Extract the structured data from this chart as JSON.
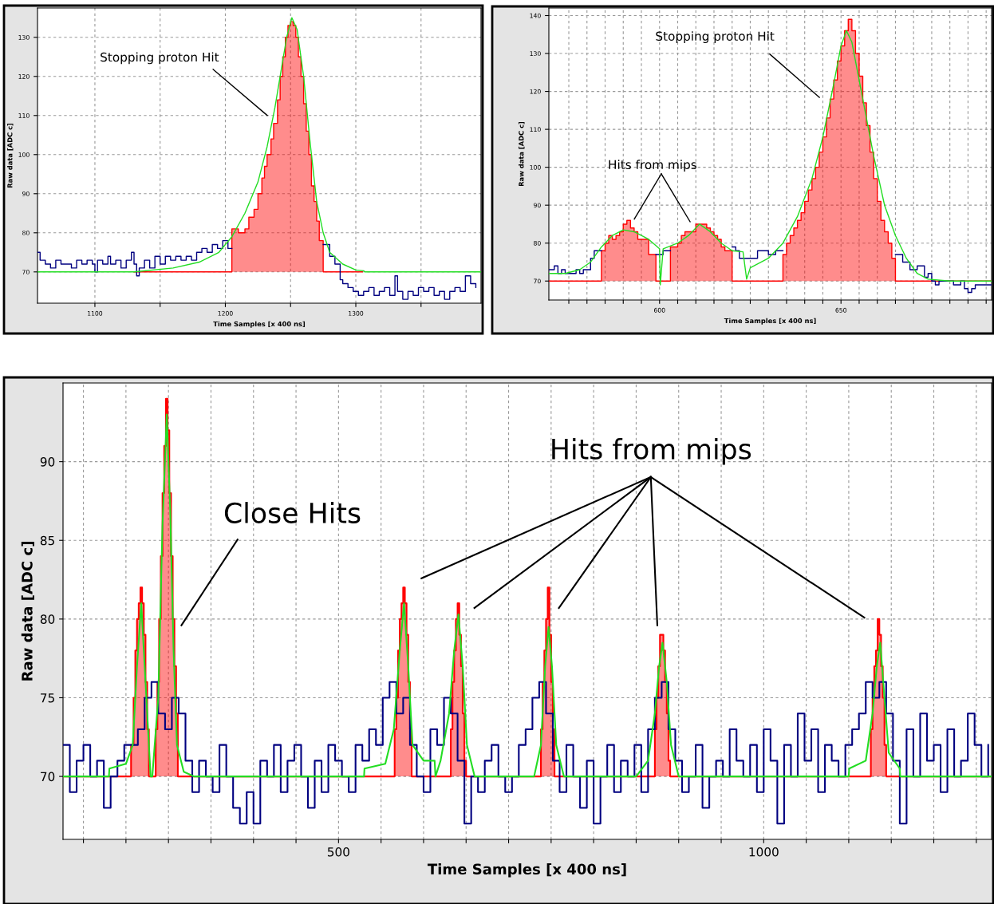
{
  "chart_data": [
    {
      "type": "step",
      "xlabel": "Time Samples [x 400 ns]",
      "ylabel": "Raw data [ADC c]",
      "xlim": [
        1056,
        1396
      ],
      "ylim": [
        62,
        137.5
      ],
      "xticks": [
        {
          "value": 1100,
          "label": "1100"
        },
        {
          "value": 1150,
          "label": null
        },
        {
          "value": 1200,
          "label": "1200"
        },
        {
          "value": 1250,
          "label": null
        },
        {
          "value": 1300,
          "label": "1300"
        },
        {
          "value": 1350,
          "label": null
        }
      ],
      "yticks": [
        70,
        80,
        90,
        100,
        110,
        120,
        130
      ],
      "grid": true,
      "series": [
        {
          "color": "#000080",
          "x": [
            1056,
            1058,
            1062,
            1066,
            1070,
            1074,
            1078,
            1082,
            1086,
            1090,
            1094,
            1098,
            1100,
            1102,
            1106,
            1110,
            1112,
            1116,
            1120,
            1124,
            1128,
            1130,
            1132,
            1134,
            1138,
            1142,
            1146,
            1150,
            1154,
            1158,
            1162,
            1166,
            1170,
            1174,
            1178,
            1182,
            1186,
            1190,
            1194,
            1198,
            1202,
            1205,
            1275,
            1280,
            1284,
            1288,
            1290,
            1294,
            1298,
            1302,
            1306,
            1310,
            1314,
            1318,
            1322,
            1326,
            1330,
            1332,
            1336,
            1340,
            1344,
            1348,
            1352,
            1356,
            1360,
            1364,
            1368,
            1372,
            1376,
            1380,
            1384,
            1388,
            1392
          ],
          "values": [
            75,
            73,
            72,
            71,
            73,
            72,
            72,
            71,
            73,
            72,
            73,
            72,
            70,
            73,
            72,
            74,
            72,
            73,
            71,
            73,
            75,
            72,
            69,
            71,
            73,
            71,
            74,
            72,
            74,
            73,
            74,
            73,
            74,
            73,
            75,
            76,
            75,
            77,
            76,
            78,
            76,
            null,
            77,
            74,
            72,
            68,
            67,
            66,
            65,
            64,
            65,
            66,
            64,
            65,
            66,
            64,
            69,
            65,
            63,
            65,
            64,
            66,
            65,
            66,
            64,
            65,
            63,
            65,
            66,
            65,
            69,
            67,
            66
          ]
        },
        {
          "type": "area",
          "color": "#ff0000",
          "x": [
            1130,
            1205,
            1210,
            1215,
            1218,
            1222,
            1225,
            1228,
            1230,
            1232,
            1235,
            1237,
            1240,
            1242,
            1244,
            1246,
            1248,
            1250,
            1252,
            1254,
            1256,
            1258,
            1260,
            1262,
            1264,
            1266,
            1268,
            1270,
            1272,
            1275,
            1305
          ],
          "values": [
            70,
            81,
            80,
            81,
            84,
            86,
            90,
            94,
            97,
            100,
            104,
            108,
            114,
            120,
            125,
            130,
            133,
            134,
            133,
            130,
            125,
            120,
            113,
            106,
            100,
            92,
            88,
            83,
            78,
            70,
            70
          ]
        },
        {
          "type": "line",
          "color": "#22dd22",
          "x": [
            1056,
            1130,
            1160,
            1180,
            1195,
            1205,
            1215,
            1225,
            1232,
            1238,
            1243,
            1247,
            1251,
            1255,
            1260,
            1265,
            1270,
            1275,
            1280,
            1290,
            1300,
            1306,
            1307,
            1396
          ],
          "values": [
            70,
            70,
            71,
            72.5,
            75,
            79,
            85,
            93,
            102,
            112,
            122,
            130,
            135,
            132,
            120,
            103,
            88,
            80,
            75,
            72,
            70.5,
            70.3,
            70,
            70
          ]
        }
      ],
      "annotations": [
        "Stopping proton Hit"
      ]
    },
    {
      "type": "step",
      "xlabel": "Time Samples [x 400 ns]",
      "ylabel": "Raw data [ADC c]",
      "xlim": [
        569.5,
        691.5
      ],
      "ylim": [
        65,
        142
      ],
      "xticks": [
        {
          "value": 575,
          "label": null
        },
        {
          "value": 580,
          "label": null
        },
        {
          "value": 585,
          "label": null
        },
        {
          "value": 590,
          "label": null
        },
        {
          "value": 595,
          "label": null
        },
        {
          "value": 600,
          "label": "600"
        },
        {
          "value": 605,
          "label": null
        },
        {
          "value": 610,
          "label": null
        },
        {
          "value": 615,
          "label": null
        },
        {
          "value": 620,
          "label": null
        },
        {
          "value": 625,
          "label": null
        },
        {
          "value": 630,
          "label": null
        },
        {
          "value": 635,
          "label": null
        },
        {
          "value": 640,
          "label": null
        },
        {
          "value": 645,
          "label": null
        },
        {
          "value": 650,
          "label": "650"
        },
        {
          "value": 655,
          "label": null
        },
        {
          "value": 660,
          "label": null
        },
        {
          "value": 665,
          "label": null
        },
        {
          "value": 670,
          "label": null
        },
        {
          "value": 675,
          "label": null
        },
        {
          "value": 680,
          "label": null
        },
        {
          "value": 685,
          "label": null
        },
        {
          "value": 690,
          "label": null
        }
      ],
      "yticks": [
        70,
        80,
        90,
        100,
        110,
        120,
        130,
        140
      ],
      "grid": true,
      "series": [
        {
          "color": "#000080",
          "x": [
            569.5,
            571,
            572,
            573,
            574,
            576,
            577,
            578,
            579,
            581,
            582,
            584,
            599,
            601,
            603,
            620,
            621,
            622,
            627,
            630,
            632,
            634,
            665,
            667,
            669,
            671,
            673,
            674,
            675,
            676,
            677,
            681,
            683,
            684,
            685,
            686,
            687,
            691.5
          ],
          "values": [
            73,
            74,
            72,
            73,
            72,
            72,
            73,
            72,
            73,
            76,
            78,
            null,
            77,
            78,
            null,
            79,
            78,
            76,
            78,
            77,
            78,
            null,
            77,
            75,
            73,
            74,
            71,
            72,
            70,
            69,
            70,
            69,
            70,
            68,
            67,
            68,
            69,
            69
          ]
        },
        {
          "type": "area",
          "color": "#ff0000",
          "x": [
            569.5,
            584,
            585,
            586,
            587,
            588,
            589,
            590,
            591,
            592,
            593,
            594,
            595,
            596,
            597,
            598,
            599,
            603,
            604,
            605,
            606,
            607,
            608,
            609,
            610,
            611,
            612,
            613,
            614,
            615,
            616,
            617,
            618,
            619,
            620,
            634,
            635,
            636,
            637,
            638,
            639,
            640,
            641,
            642,
            643,
            644,
            645,
            646,
            647,
            648,
            649,
            650,
            651,
            652,
            653,
            654,
            655,
            656,
            657,
            658,
            659,
            660,
            661,
            662,
            663,
            664,
            665,
            691.5
          ],
          "values": [
            70,
            78,
            80,
            82,
            81,
            82,
            83,
            85,
            86,
            84,
            83,
            81,
            81,
            81,
            77,
            77,
            70,
            79,
            79,
            80,
            82,
            83,
            83,
            83,
            85,
            85,
            85,
            84,
            83,
            82,
            81,
            79,
            78,
            78,
            70,
            77,
            80,
            82,
            84,
            86,
            88,
            91,
            94,
            97,
            100,
            104,
            108,
            113,
            118,
            123,
            128,
            132,
            136,
            139,
            136,
            130,
            124,
            117,
            111,
            104,
            97,
            91,
            86,
            83,
            80,
            76,
            70,
            70
          ]
        },
        {
          "type": "line",
          "color": "#22dd22",
          "x": [
            569.5,
            574,
            578,
            581,
            584,
            587,
            590,
            593,
            597,
            600,
            600.2,
            601,
            605,
            608,
            611,
            614,
            617,
            620,
            623,
            624,
            625,
            630,
            634,
            638,
            642,
            645,
            648,
            650,
            651.5,
            653,
            656,
            659,
            662,
            665,
            668,
            671,
            674,
            680,
            691.5
          ],
          "values": [
            72,
            72,
            73,
            75,
            79,
            82,
            83.5,
            83,
            81,
            78.5,
            69,
            78.5,
            80,
            82,
            85,
            83,
            80,
            78,
            77.7,
            70.5,
            73.5,
            76,
            80,
            87,
            97,
            108,
            122,
            132,
            136,
            133,
            118,
            103,
            90,
            82,
            76,
            72,
            70.5,
            70,
            70
          ]
        }
      ],
      "annotations": [
        "Hits from mips",
        "Stopping proton Hit"
      ]
    },
    {
      "type": "step",
      "xlabel": "Time Samples [x 400 ns]",
      "ylabel": "Raw data [ADC c]",
      "xlim": [
        176,
        1268
      ],
      "ylim": [
        66,
        95
      ],
      "xticks": [
        {
          "value": 200,
          "label": null
        },
        {
          "value": 250,
          "label": null
        },
        {
          "value": 300,
          "label": null
        },
        {
          "value": 350,
          "label": null
        },
        {
          "value": 400,
          "label": null
        },
        {
          "value": 450,
          "label": null
        },
        {
          "value": 500,
          "label": "500"
        },
        {
          "value": 550,
          "label": null
        },
        {
          "value": 600,
          "label": null
        },
        {
          "value": 650,
          "label": null
        },
        {
          "value": 700,
          "label": null
        },
        {
          "value": 750,
          "label": null
        },
        {
          "value": 800,
          "label": null
        },
        {
          "value": 850,
          "label": null
        },
        {
          "value": 900,
          "label": null
        },
        {
          "value": 950,
          "label": null
        },
        {
          "value": 1000,
          "label": "1000"
        },
        {
          "value": 1050,
          "label": null
        },
        {
          "value": 1100,
          "label": null
        },
        {
          "value": 1150,
          "label": null
        },
        {
          "value": 1200,
          "label": null
        },
        {
          "value": 1250,
          "label": null
        }
      ],
      "yticks": [
        70,
        75,
        80,
        85,
        90
      ],
      "grid": true,
      "series": [
        {
          "color": "#000080",
          "x": [
            176,
            184,
            192,
            200,
            208,
            216,
            224,
            232,
            240,
            248,
            256,
            264,
            272,
            280,
            288,
            296,
            304,
            312,
            320,
            328,
            336,
            344,
            352,
            360,
            368,
            376,
            384,
            392,
            400,
            408,
            416,
            424,
            432,
            440,
            448,
            456,
            464,
            472,
            480,
            488,
            496,
            504,
            512,
            520,
            528,
            536,
            544,
            552,
            560,
            568,
            576,
            584,
            592,
            600,
            608,
            616,
            624,
            632,
            640,
            648,
            656,
            664,
            672,
            680,
            688,
            696,
            704,
            712,
            720,
            728,
            736,
            744,
            752,
            760,
            768,
            776,
            784,
            792,
            800,
            808,
            816,
            824,
            832,
            840,
            848,
            856,
            864,
            872,
            880,
            888,
            896,
            904,
            912,
            920,
            928,
            936,
            944,
            952,
            960,
            968,
            976,
            984,
            992,
            1000,
            1008,
            1016,
            1024,
            1032,
            1040,
            1048,
            1056,
            1064,
            1072,
            1080,
            1088,
            1096,
            1104,
            1112,
            1120,
            1128,
            1136,
            1144,
            1152,
            1160,
            1168,
            1176,
            1184,
            1192,
            1200,
            1208,
            1216,
            1224,
            1232,
            1240,
            1248,
            1256,
            1264
          ],
          "values": [
            72,
            69,
            71,
            72,
            70,
            71,
            68,
            70,
            71,
            72,
            72,
            73,
            75,
            76,
            74,
            73,
            75,
            74,
            71,
            69,
            71,
            70,
            69,
            72,
            70,
            68,
            67,
            69,
            67,
            71,
            70,
            72,
            69,
            71,
            72,
            70,
            68,
            71,
            69,
            72,
            71,
            70,
            69,
            72,
            71,
            73,
            72,
            75,
            76,
            74,
            75,
            72,
            70,
            69,
            73,
            72,
            75,
            74,
            71,
            67,
            70,
            69,
            71,
            72,
            70,
            69,
            70,
            72,
            73,
            75,
            76,
            74,
            71,
            69,
            72,
            70,
            68,
            71,
            67,
            70,
            72,
            69,
            71,
            70,
            72,
            69,
            73,
            75,
            76,
            73,
            71,
            69,
            70,
            72,
            68,
            70,
            71,
            70,
            73,
            71,
            70,
            72,
            69,
            73,
            71,
            67,
            72,
            70,
            74,
            71,
            73,
            69,
            72,
            71,
            70,
            72,
            73,
            74,
            76,
            75,
            76,
            74,
            71,
            67,
            73,
            70,
            74,
            71,
            72,
            69,
            73,
            70,
            71,
            74,
            72,
            70,
            72
          ]
        },
        {
          "type": "area",
          "color": "#ff0000",
          "x": [
            176,
            256,
            259,
            261,
            263,
            265,
            267,
            269,
            271,
            273,
            275,
            277,
            285,
            287,
            289,
            291,
            293,
            295,
            297,
            299,
            301,
            303,
            305,
            307,
            309,
            311,
            566,
            568,
            570,
            572,
            574,
            576,
            578,
            580,
            582,
            584,
            586,
            632,
            634,
            636,
            638,
            640,
            642,
            644,
            646,
            648,
            650,
            738,
            740,
            742,
            744,
            746,
            748,
            750,
            752,
            754,
            872,
            874,
            876,
            878,
            880,
            882,
            884,
            886,
            888,
            890,
            1126,
            1128,
            1130,
            1132,
            1134,
            1136,
            1138,
            1140,
            1142,
            1144,
            1268
          ],
          "values": [
            70,
            72,
            75,
            78,
            80,
            81,
            82,
            81,
            79,
            76,
            73,
            70,
            73,
            76,
            80,
            84,
            88,
            91,
            94,
            92,
            88,
            84,
            80,
            77,
            74,
            70,
            73,
            75,
            78,
            80,
            81,
            82,
            81,
            79,
            76,
            73,
            70,
            73,
            76,
            78,
            80,
            81,
            79,
            77,
            74,
            71,
            70,
            73,
            76,
            78,
            80,
            82,
            79,
            76,
            73,
            70,
            73,
            75,
            77,
            79,
            79,
            78,
            76,
            74,
            71,
            70,
            73,
            75,
            77,
            78,
            80,
            79,
            77,
            75,
            72,
            70,
            70
          ]
        },
        {
          "type": "line",
          "color": "#22dd22",
          "x": [
            176,
            230,
            230.5,
            250,
            258,
            263,
            268,
            272,
            277,
            279,
            281,
            288,
            293,
            298,
            302,
            306,
            310,
            318,
            330,
            530,
            530.5,
            555,
            565,
            572,
            577,
            582,
            587,
            600,
            613,
            614,
            620,
            630,
            636,
            641,
            646,
            651,
            660,
            730,
            738,
            743,
            747,
            751,
            756,
            765,
            850,
            864,
            872,
            877,
            881,
            886,
            891,
            900,
            1100,
            1100.5,
            1120,
            1128,
            1133,
            1137,
            1142,
            1147,
            1160,
            1160.5,
            1268
          ],
          "values": [
            70,
            70,
            70.5,
            70.8,
            72,
            77,
            81,
            77,
            72,
            70,
            70,
            75,
            86,
            93,
            87,
            78,
            72,
            70.3,
            70,
            70,
            70.5,
            70.8,
            73,
            78,
            81,
            77,
            72,
            71,
            71,
            70,
            71,
            74,
            78,
            80.3,
            77,
            72,
            70,
            70,
            72,
            77,
            79.5,
            77,
            72,
            70,
            70,
            71,
            74,
            77,
            78.5,
            76,
            72,
            70,
            70,
            70.5,
            71,
            74,
            77,
            78.5,
            75,
            71.5,
            70.5,
            70,
            70
          ]
        }
      ],
      "annotations": [
        "Close Hits",
        "Hits from mips"
      ]
    }
  ]
}
